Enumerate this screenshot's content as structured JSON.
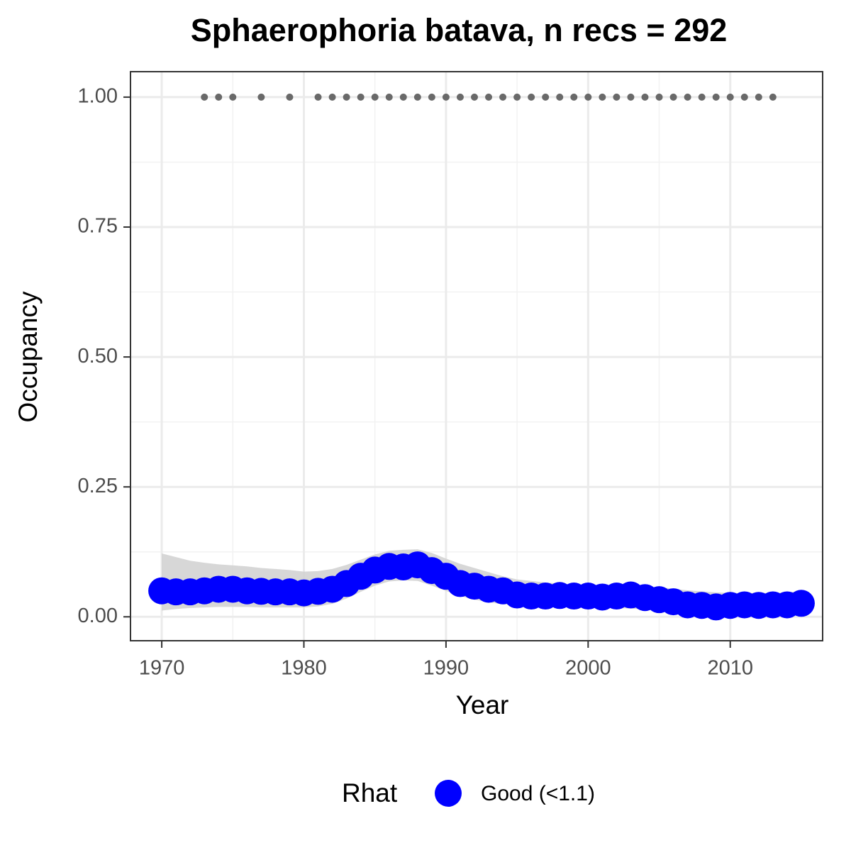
{
  "chart_data": {
    "type": "scatter",
    "title": "Sphaerophoria batava, n recs = 292",
    "x_label": "Year",
    "y_label": "Occupancy",
    "x": [
      1970,
      1971,
      1972,
      1973,
      1974,
      1975,
      1976,
      1977,
      1978,
      1979,
      1980,
      1981,
      1982,
      1983,
      1984,
      1985,
      1986,
      1987,
      1988,
      1989,
      1990,
      1991,
      1992,
      1993,
      1994,
      1995,
      1996,
      1997,
      1998,
      1999,
      2000,
      2001,
      2002,
      2003,
      2004,
      2005,
      2006,
      2007,
      2008,
      2009,
      2010,
      2011,
      2012,
      2013,
      2014,
      2015
    ],
    "series": [
      {
        "name": "Good (<1.1)",
        "color": "#0000ff",
        "values": [
          0.05,
          0.048,
          0.048,
          0.05,
          0.053,
          0.053,
          0.05,
          0.049,
          0.048,
          0.048,
          0.046,
          0.049,
          0.053,
          0.064,
          0.078,
          0.09,
          0.097,
          0.096,
          0.1,
          0.089,
          0.078,
          0.064,
          0.059,
          0.053,
          0.05,
          0.042,
          0.04,
          0.04,
          0.041,
          0.04,
          0.04,
          0.038,
          0.04,
          0.042,
          0.037,
          0.033,
          0.029,
          0.023,
          0.022,
          0.019,
          0.022,
          0.023,
          0.022,
          0.023,
          0.023,
          0.026
        ]
      }
    ],
    "interval": {
      "color": "#d3d3d3",
      "upper": [
        0.122,
        0.115,
        0.108,
        0.104,
        0.101,
        0.099,
        0.097,
        0.094,
        0.092,
        0.09,
        0.087,
        0.088,
        0.092,
        0.1,
        0.11,
        0.12,
        0.127,
        0.129,
        0.13,
        0.123,
        0.112,
        0.102,
        0.094,
        0.086,
        0.078,
        0.072,
        0.069,
        0.066,
        0.064,
        0.062,
        0.061,
        0.06,
        0.06,
        0.06,
        0.059,
        0.057,
        0.054,
        0.051,
        0.049,
        0.047,
        0.046,
        0.046,
        0.046,
        0.046,
        0.047,
        0.049
      ],
      "lower": [
        0.012,
        0.015,
        0.017,
        0.018,
        0.019,
        0.019,
        0.019,
        0.018,
        0.018,
        0.018,
        0.018,
        0.02,
        0.025,
        0.035,
        0.048,
        0.06,
        0.068,
        0.07,
        0.069,
        0.06,
        0.05,
        0.04,
        0.033,
        0.028,
        0.024,
        0.022,
        0.02,
        0.019,
        0.019,
        0.018,
        0.018,
        0.017,
        0.017,
        0.016,
        0.014,
        0.012,
        0.01,
        0.008,
        0.007,
        0.006,
        0.006,
        0.006,
        0.006,
        0.006,
        0.006,
        0.006
      ]
    },
    "records": {
      "color": "#696969",
      "x": [
        1973,
        1974,
        1975,
        1977,
        1979,
        1981,
        1982,
        1983,
        1984,
        1985,
        1986,
        1987,
        1988,
        1989,
        1990,
        1991,
        1992,
        1993,
        1994,
        1995,
        1996,
        1997,
        1998,
        1999,
        2000,
        2001,
        2002,
        2003,
        2004,
        2005,
        2006,
        2007,
        2008,
        2009,
        2010,
        2011,
        2012,
        2013
      ],
      "values": [
        1,
        1,
        1,
        1,
        1,
        1,
        1,
        1,
        1,
        1,
        1,
        1,
        1,
        1,
        1,
        1,
        1,
        1,
        1,
        1,
        1,
        1,
        1,
        1,
        1,
        1,
        1,
        1,
        1,
        1,
        1,
        1,
        1,
        1,
        1,
        1,
        1,
        1
      ]
    },
    "xlim": [
      1967.8,
      2016.5
    ],
    "ylim": [
      -0.046,
      1.049
    ],
    "xticks": [
      1970,
      1980,
      1990,
      2000,
      2010
    ],
    "yticks": [
      {
        "value": 0,
        "label": "0.00"
      },
      {
        "value": 0.25,
        "label": "0.25"
      },
      {
        "value": 0.5,
        "label": "0.50"
      },
      {
        "value": 0.75,
        "label": "0.75"
      },
      {
        "value": 1,
        "label": "1.00"
      }
    ],
    "grid": true,
    "legend_title": "Rhat",
    "legend_position": "bottom"
  }
}
